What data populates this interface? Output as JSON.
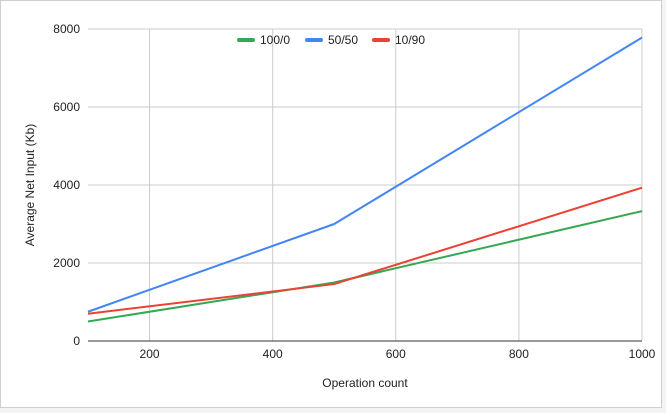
{
  "chart_data": {
    "type": "line",
    "title": "",
    "xlabel": "Operation count",
    "ylabel": "Average Net Input (Kb)",
    "xlim": [
      100,
      1000
    ],
    "ylim": [
      0,
      8000
    ],
    "x_ticks": [
      200,
      400,
      600,
      800,
      1000
    ],
    "y_ticks": [
      0,
      2000,
      4000,
      6000,
      8000
    ],
    "grid": true,
    "legend_position": "top",
    "series": [
      {
        "name": "100/0",
        "color": "#34a853",
        "x": [
          100,
          500,
          1000
        ],
        "y": [
          500,
          1500,
          3330
        ]
      },
      {
        "name": "50/50",
        "color": "#4285f4",
        "x": [
          100,
          500,
          1000
        ],
        "y": [
          750,
          3000,
          7780
        ]
      },
      {
        "name": "10/90",
        "color": "#ea4335",
        "x": [
          100,
          500,
          1000
        ],
        "y": [
          700,
          1460,
          3930
        ]
      }
    ]
  }
}
